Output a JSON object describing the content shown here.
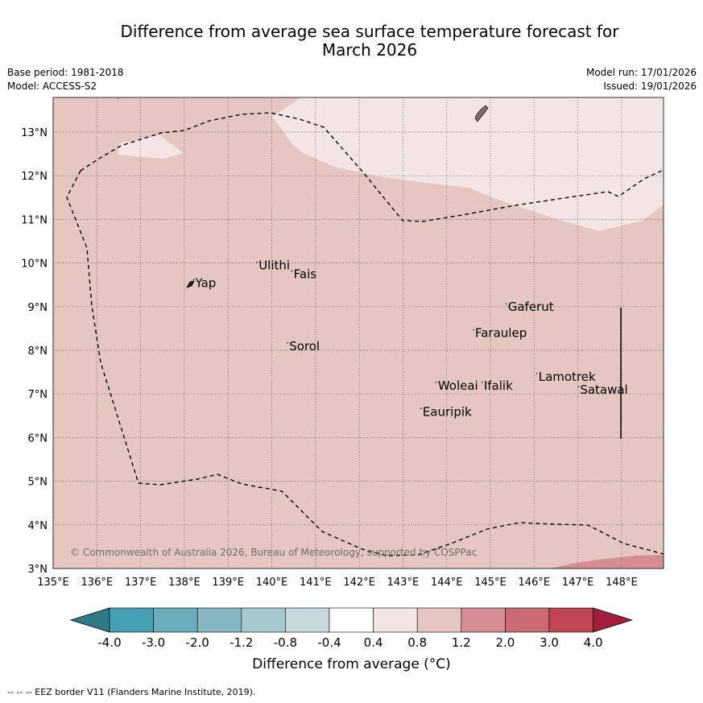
{
  "title_line1": "Difference from average sea surface temperature forecast for",
  "title_line2": "March 2026",
  "base_period": "Base period: 1981-2018",
  "model": "Model: ACCESS-S2",
  "model_run": "Model run: 17/01/2026",
  "issued": "Issued: 19/01/2026",
  "copyright": "© Commonwealth of Australia 2026, Bureau of Meteorology, supported by COSPPac",
  "lon_labels": [
    "135°E",
    "136°E",
    "137°E",
    "138°E",
    "139°E",
    "140°E",
    "141°E",
    "142°E",
    "143°E",
    "144°E",
    "145°E",
    "146°E",
    "147°E",
    "148°E"
  ],
  "lat_labels": [
    "3°N",
    "4°N",
    "5°N",
    "6°N",
    "7°N",
    "8°N",
    "9°N",
    "10°N",
    "11°N",
    "12°N",
    "13°N"
  ],
  "places": [
    {
      "name": "Yap",
      "lon": 138.25,
      "lat": 9.45
    },
    {
      "name": "Ulithi",
      "lon": 139.7,
      "lat": 9.85
    },
    {
      "name": "Fais",
      "lon": 140.5,
      "lat": 9.65
    },
    {
      "name": "Sorol",
      "lon": 140.4,
      "lat": 8.0
    },
    {
      "name": "Gaferut",
      "lon": 145.4,
      "lat": 8.9
    },
    {
      "name": "Faraulep",
      "lon": 144.65,
      "lat": 8.3
    },
    {
      "name": "Woleai",
      "lon": 143.8,
      "lat": 7.1
    },
    {
      "name": "Ifalik",
      "lon": 144.85,
      "lat": 7.1
    },
    {
      "name": "Lamotrek",
      "lon": 146.1,
      "lat": 7.3
    },
    {
      "name": "Satawal",
      "lon": 147.05,
      "lat": 7.0
    },
    {
      "name": "Eauripik",
      "lon": 143.45,
      "lat": 6.5
    }
  ],
  "colorbar": {
    "ticks": [
      "-4.0",
      "-3.0",
      "-2.0",
      "-1.2",
      "-0.8",
      "-0.4",
      "0.4",
      "0.8",
      "1.2",
      "2.0",
      "3.0",
      "4.0"
    ],
    "colors": [
      "#2e7a86",
      "#45a0b3",
      "#6aadbd",
      "#87b6c3",
      "#a8c8cf",
      "#c7d9dd",
      "#ffffff",
      "#f3e5e3",
      "#e6c6c1",
      "#d58d93",
      "#cb6a74",
      "#c04555",
      "#a31f3a"
    ],
    "label": "Difference from average (°C)"
  },
  "footnote": "-- -- -- EEZ border V11 (Flanders Marine Institute, 2019)."
}
